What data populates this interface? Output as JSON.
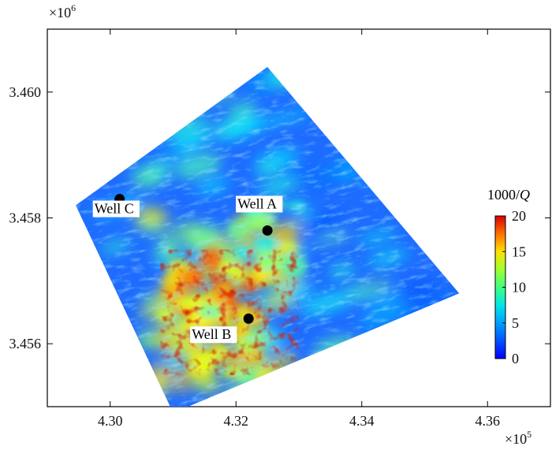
{
  "chart_data": {
    "type": "heatmap",
    "title": "",
    "xlabel": "",
    "ylabel": "",
    "x_multiplier": "×10",
    "x_multiplier_exp": "5",
    "y_multiplier": "×10",
    "y_multiplier_exp": "6",
    "xlim": [
      4.29,
      4.37
    ],
    "ylim": [
      3.455,
      3.461
    ],
    "x_ticks": [
      {
        "value": 4.3,
        "label": "4.30"
      },
      {
        "value": 4.32,
        "label": "4.32"
      },
      {
        "value": 4.34,
        "label": "4.34"
      },
      {
        "value": 4.36,
        "label": "4.36"
      }
    ],
    "y_ticks": [
      {
        "value": 3.456,
        "label": "3.456"
      },
      {
        "value": 3.458,
        "label": "3.458"
      },
      {
        "value": 3.46,
        "label": "3.460"
      }
    ],
    "survey_polygon": [
      [
        4.2945,
        3.4582
      ],
      [
        4.325,
        3.4604
      ],
      [
        4.3555,
        3.4568
      ],
      [
        4.31,
        3.4549
      ]
    ],
    "wells": [
      {
        "name": "Well A",
        "x": 4.325,
        "y": 3.4578
      },
      {
        "name": "Well B",
        "x": 4.322,
        "y": 3.4564
      },
      {
        "name": "Well C",
        "x": 4.3015,
        "y": 3.4583
      }
    ],
    "colorbar": {
      "label_prefix": "1000/",
      "label_var": "Q",
      "min": 0,
      "max": 20,
      "ticks": [
        "0",
        "5",
        "10",
        "15",
        "20"
      ],
      "colormap": "jet"
    },
    "high_attenuation_zones": [
      {
        "x": 4.3145,
        "y": 3.4569,
        "strength": 17
      },
      {
        "x": 4.3195,
        "y": 3.4566,
        "strength": 16
      },
      {
        "x": 4.313,
        "y": 3.4563,
        "strength": 15
      },
      {
        "x": 4.318,
        "y": 3.456,
        "strength": 14
      },
      {
        "x": 4.325,
        "y": 3.4577,
        "strength": 12
      }
    ],
    "grid": false
  }
}
